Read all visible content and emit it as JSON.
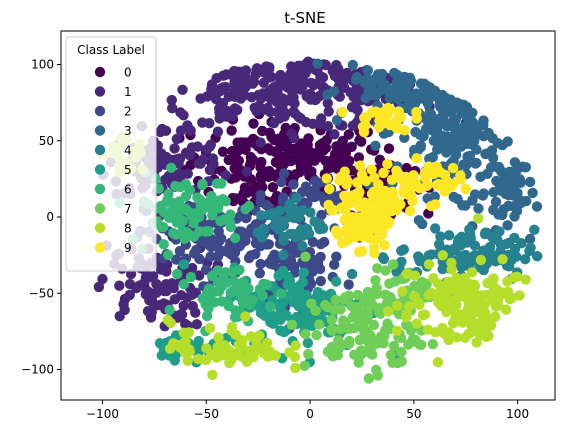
{
  "chart_data": {
    "type": "scatter",
    "title": "t-SNE",
    "xlabel": "",
    "ylabel": "",
    "xlim": [
      -120,
      118
    ],
    "ylim": [
      -120,
      122
    ],
    "x_ticks": [
      -100,
      -50,
      0,
      50,
      100
    ],
    "y_ticks": [
      -100,
      -50,
      0,
      50,
      100
    ],
    "x_tick_labels": [
      "−100",
      "−50",
      "0",
      "50",
      "100"
    ],
    "y_tick_labels": [
      "−100",
      "−50",
      "0",
      "50",
      "100"
    ],
    "grid": false,
    "legend": {
      "title": "Class Label",
      "position": "top-left",
      "entries": [
        "0",
        "1",
        "2",
        "3",
        "4",
        "5",
        "6",
        "7",
        "8",
        "9"
      ]
    },
    "colors": [
      "#440154",
      "#482878",
      "#3e4989",
      "#31688e",
      "#26828e",
      "#1f9e89",
      "#35b779",
      "#6ece58",
      "#b5de2b",
      "#fde725"
    ],
    "series": [
      {
        "name": "0",
        "clusters": [
          {
            "cx": -10,
            "cy": 40,
            "rx": 42,
            "ry": 20,
            "n": 170
          },
          {
            "cx": 30,
            "cy": 22,
            "rx": 18,
            "ry": 18,
            "n": 55
          },
          {
            "cx": -25,
            "cy": 15,
            "rx": 15,
            "ry": 10,
            "n": 30
          }
        ]
      },
      {
        "name": "1",
        "clusters": [
          {
            "cx": -10,
            "cy": 85,
            "rx": 65,
            "ry": 25,
            "n": 270
          },
          {
            "cx": -70,
            "cy": 35,
            "rx": 25,
            "ry": 22,
            "n": 90
          },
          {
            "cx": -75,
            "cy": -45,
            "rx": 25,
            "ry": 25,
            "n": 100
          }
        ]
      },
      {
        "name": "2",
        "clusters": [
          {
            "cx": -40,
            "cy": -15,
            "rx": 35,
            "ry": 25,
            "n": 130
          },
          {
            "cx": -5,
            "cy": -30,
            "rx": 20,
            "ry": 25,
            "n": 70
          },
          {
            "cx": 5,
            "cy": 10,
            "rx": 20,
            "ry": 15,
            "n": 40
          }
        ]
      },
      {
        "name": "3",
        "clusters": [
          {
            "cx": 75,
            "cy": 60,
            "rx": 30,
            "ry": 40,
            "n": 190
          },
          {
            "cx": 45,
            "cy": 90,
            "rx": 25,
            "ry": 15,
            "n": 70
          },
          {
            "cx": 95,
            "cy": 15,
            "rx": 12,
            "ry": 25,
            "n": 50
          }
        ]
      },
      {
        "name": "4",
        "clusters": [
          {
            "cx": 75,
            "cy": -25,
            "rx": 30,
            "ry": 15,
            "n": 110
          },
          {
            "cx": -10,
            "cy": -5,
            "rx": 15,
            "ry": 15,
            "n": 45
          }
        ]
      },
      {
        "name": "5",
        "clusters": [
          {
            "cx": -5,
            "cy": -60,
            "rx": 30,
            "ry": 25,
            "n": 140
          },
          {
            "cx": -60,
            "cy": -85,
            "rx": 15,
            "ry": 10,
            "n": 40
          }
        ]
      },
      {
        "name": "6",
        "clusters": [
          {
            "cx": -60,
            "cy": 5,
            "rx": 25,
            "ry": 20,
            "n": 90
          },
          {
            "cx": -40,
            "cy": -50,
            "rx": 18,
            "ry": 15,
            "n": 50
          }
        ]
      },
      {
        "name": "7",
        "clusters": [
          {
            "cx": 25,
            "cy": -75,
            "rx": 25,
            "ry": 25,
            "n": 110
          },
          {
            "cx": 45,
            "cy": -50,
            "rx": 15,
            "ry": 15,
            "n": 40
          }
        ]
      },
      {
        "name": "8",
        "clusters": [
          {
            "cx": 75,
            "cy": -60,
            "rx": 30,
            "ry": 30,
            "n": 140
          },
          {
            "cx": -40,
            "cy": -85,
            "rx": 25,
            "ry": 15,
            "n": 70
          },
          {
            "cx": -90,
            "cy": 40,
            "rx": 10,
            "ry": 10,
            "n": 20
          }
        ]
      },
      {
        "name": "9",
        "clusters": [
          {
            "cx": 30,
            "cy": 10,
            "rx": 20,
            "ry": 20,
            "n": 110
          },
          {
            "cx": 55,
            "cy": 25,
            "rx": 15,
            "ry": 10,
            "n": 40
          },
          {
            "cx": 35,
            "cy": 65,
            "rx": 12,
            "ry": 8,
            "n": 30
          },
          {
            "cx": 25,
            "cy": -10,
            "rx": 12,
            "ry": 12,
            "n": 30
          }
        ]
      }
    ]
  }
}
